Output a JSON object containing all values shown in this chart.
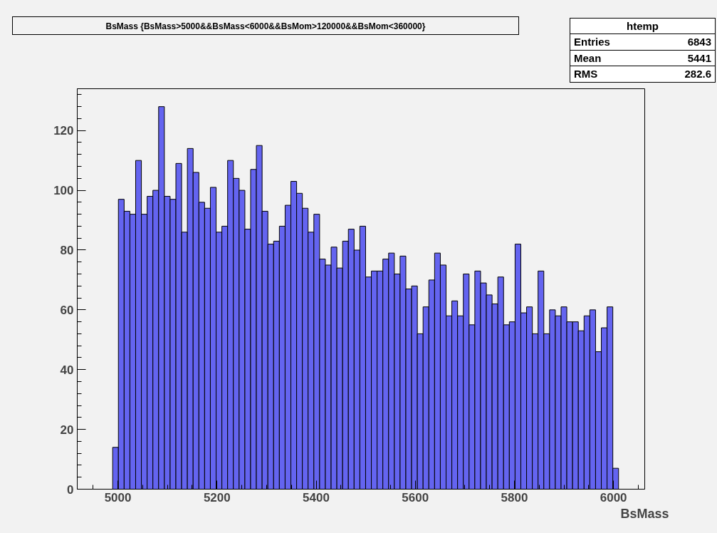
{
  "chart_data": {
    "type": "histogram",
    "title": "BsMass {BsMass>5000&&BsMass<6000&&BsMom>120000&&BsMom<360000}",
    "xlabel": "BsMass",
    "annotations": [
      "htemp",
      "Entries",
      "6843",
      "Mean",
      "5441",
      "RMS",
      "282.6"
    ],
    "bins": [
      4989.4,
      5001.0,
      5012.6,
      5024.2,
      5035.8,
      5047.4,
      5059.0,
      5070.6,
      5082.2,
      5093.8,
      5105.4,
      5117.0,
      5128.6,
      5140.2,
      5151.8,
      5163.4,
      5175.0,
      5186.6,
      5198.2,
      5209.8,
      5221.4,
      5233.0,
      5244.6,
      5256.2,
      5267.8,
      5279.4,
      5291.0,
      5302.6,
      5314.2,
      5325.8,
      5337.4,
      5349.0,
      5360.6,
      5372.2,
      5383.8,
      5395.4,
      5407.0,
      5418.6,
      5430.2,
      5441.8,
      5453.4,
      5465.0,
      5476.6,
      5488.2,
      5499.8,
      5511.4,
      5523.0,
      5534.6,
      5546.2,
      5557.8,
      5569.4,
      5581.0,
      5592.6,
      5604.2,
      5615.8,
      5627.4,
      5639.0,
      5650.6,
      5662.2,
      5673.8,
      5685.4,
      5697.0,
      5708.6,
      5720.2,
      5731.8,
      5743.4,
      5755.0,
      5766.6,
      5778.2,
      5789.8,
      5801.4,
      5813.0,
      5824.6,
      5836.2,
      5847.8,
      5859.4,
      5871.0,
      5882.6,
      5894.2,
      5905.8,
      5917.4,
      5929.0,
      5940.6,
      5952.2,
      5963.8,
      5975.4,
      5987.0,
      5998.6,
      6010.2
    ],
    "values": [
      14,
      97,
      93,
      92,
      110,
      92,
      98,
      100,
      128,
      98,
      97,
      109,
      86,
      114,
      106,
      96,
      94,
      101,
      86,
      88,
      110,
      104,
      100,
      87,
      107,
      115,
      93,
      82,
      83,
      88,
      95,
      103,
      99,
      94,
      86,
      92,
      77,
      75,
      81,
      74,
      83,
      87,
      80,
      88,
      71,
      73,
      73,
      77,
      79,
      72,
      78,
      67,
      68,
      52,
      61,
      70,
      79,
      75,
      58,
      63,
      58,
      72,
      55,
      73,
      69,
      65,
      62,
      71,
      55,
      56,
      82,
      59,
      61,
      52,
      73,
      52,
      60,
      58,
      61,
      56,
      56,
      53,
      58,
      60,
      46,
      54,
      61,
      7
    ],
    "color": "#6464f0",
    "xlim": [
      4918,
      6063
    ],
    "ylim": [
      0,
      134
    ],
    "xticks": [
      5000,
      5200,
      5400,
      5600,
      5800,
      6000
    ],
    "yticks": [
      0,
      20,
      40,
      60,
      80,
      100,
      120
    ],
    "grid": false
  }
}
